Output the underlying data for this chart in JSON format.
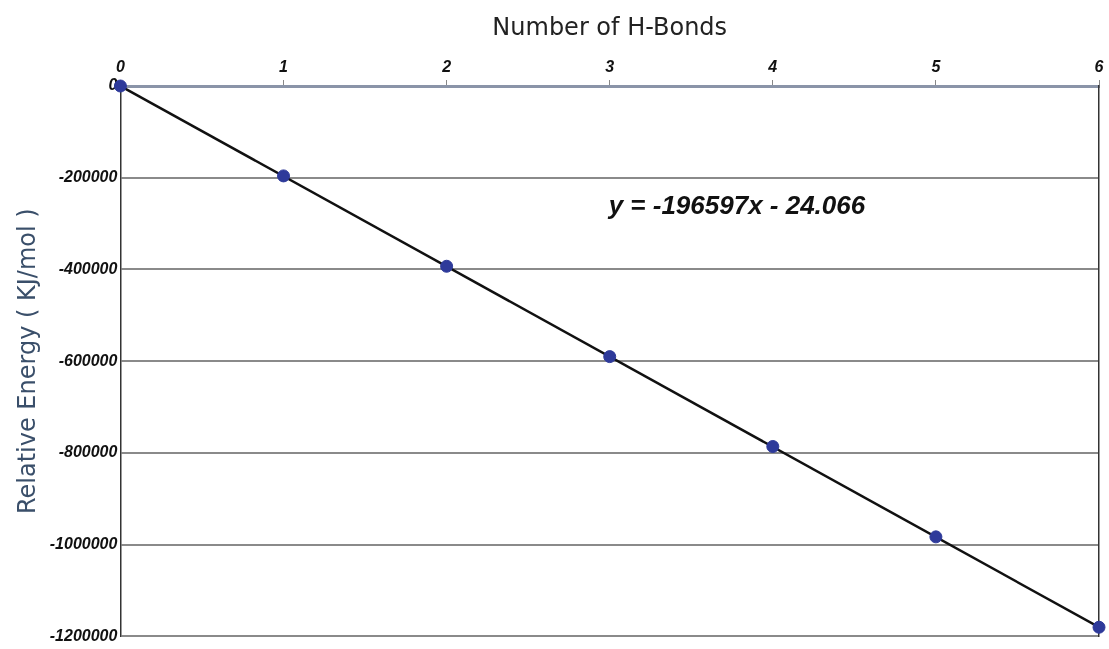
{
  "chart_data": {
    "type": "scatter",
    "xlabel": "Number of H-Bonds",
    "ylabel": "Relative Energy ( KJ/mol )",
    "x": [
      0,
      1,
      2,
      3,
      4,
      5,
      6
    ],
    "series": [
      {
        "color": "#2e3a9a",
        "values": [
          0,
          -196000,
          -393000,
          -590000,
          -786000,
          -983000,
          -1180000
        ]
      },
      {
        "type": "line",
        "marker": "none",
        "color": "#111111",
        "x": [
          0,
          6
        ],
        "values": [
          0,
          -1180000
        ]
      }
    ],
    "xlim": [
      0,
      6
    ],
    "xticks": [
      0,
      1,
      2,
      3,
      4,
      5,
      6
    ],
    "ylim": [
      -1200000,
      0
    ],
    "yticks": [
      -1200000,
      -1000000,
      -800000,
      -600000,
      -400000,
      -200000,
      0
    ],
    "grid": "y",
    "legend": false,
    "marker": "circle",
    "line_style": "solid",
    "annotations": [
      "y = -196597x - 24.066"
    ]
  }
}
